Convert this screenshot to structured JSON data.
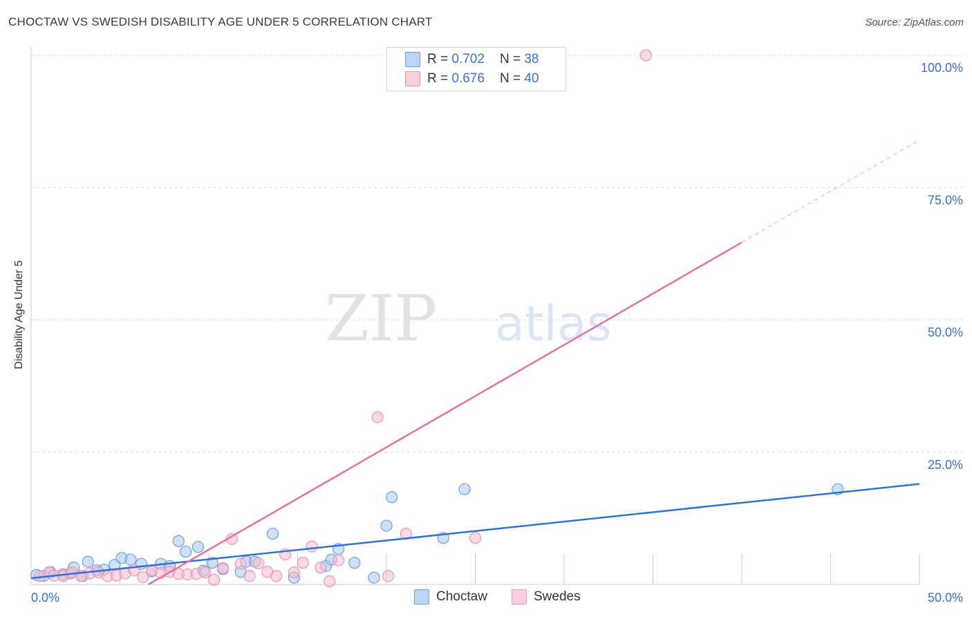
{
  "title": "CHOCTAW VS SWEDISH DISABILITY AGE UNDER 5 CORRELATION CHART",
  "source": "Source: ZipAtlas.com",
  "watermark": {
    "zip": "ZIP",
    "atlas": "atlas"
  },
  "legend": {
    "rows": [
      {
        "r_label": "R =",
        "r_value": "0.702",
        "n_label": "N =",
        "n_value": "38"
      },
      {
        "r_label": "R =",
        "r_value": "0.676",
        "n_label": "N =",
        "n_value": "40"
      }
    ]
  },
  "colors": {
    "choctaw_fill": "#a8c8f0",
    "choctaw_stroke": "#6f9fe0",
    "choctaw_line": "#2f72d0",
    "swedes_fill": "#f8bcd0",
    "swedes_stroke": "#ee94b2",
    "swedes_line": "#e8709a",
    "tick_label": "#3b6fd0"
  },
  "chart_data": {
    "type": "scatter",
    "title": "CHOCTAW VS SWEDISH DISABILITY AGE UNDER 5 CORRELATION CHART",
    "xlabel": "",
    "ylabel": "Disability Age Under 5",
    "xlim": [
      0,
      50
    ],
    "ylim": [
      0,
      100
    ],
    "x_tick_labels": [
      "0.0%",
      "50.0%"
    ],
    "y_tick_labels": [
      "25.0%",
      "50.0%",
      "75.0%",
      "100.0%"
    ],
    "y_ticks": [
      25,
      50,
      75,
      100
    ],
    "x_minor_ticks": [
      5,
      10,
      15,
      20,
      25,
      30,
      35,
      40,
      45,
      50
    ],
    "grid": true,
    "series": [
      {
        "name": "Choctaw",
        "r": 0.702,
        "n": 38,
        "trend": {
          "x0": 0,
          "y0": 1.2,
          "x1": 50,
          "y1": 19.0
        },
        "points": [
          [
            0.3,
            1.8
          ],
          [
            0.7,
            1.6
          ],
          [
            1.1,
            2.3
          ],
          [
            1.8,
            1.9
          ],
          [
            2.2,
            2.1
          ],
          [
            2.4,
            3.2
          ],
          [
            2.9,
            1.6
          ],
          [
            3.2,
            4.3
          ],
          [
            3.7,
            2.7
          ],
          [
            4.1,
            2.8
          ],
          [
            4.7,
            3.7
          ],
          [
            5.1,
            5.0
          ],
          [
            5.6,
            4.7
          ],
          [
            6.2,
            3.9
          ],
          [
            6.8,
            2.5
          ],
          [
            7.3,
            3.9
          ],
          [
            7.8,
            3.5
          ],
          [
            8.3,
            8.2
          ],
          [
            8.7,
            6.2
          ],
          [
            9.4,
            7.1
          ],
          [
            9.7,
            2.6
          ],
          [
            10.2,
            4.1
          ],
          [
            10.8,
            2.9
          ],
          [
            11.8,
            2.4
          ],
          [
            12.1,
            4.3
          ],
          [
            12.6,
            4.3
          ],
          [
            13.6,
            9.6
          ],
          [
            14.8,
            1.3
          ],
          [
            16.6,
            3.5
          ],
          [
            16.9,
            4.7
          ],
          [
            17.3,
            6.7
          ],
          [
            18.2,
            4.1
          ],
          [
            19.3,
            1.3
          ],
          [
            20.0,
            11.1
          ],
          [
            20.3,
            16.5
          ],
          [
            23.2,
            8.8
          ],
          [
            24.4,
            18.0
          ],
          [
            45.4,
            18.0
          ]
        ]
      },
      {
        "name": "Swedes",
        "r": 0.676,
        "n": 40,
        "trend": {
          "x0": 6.6,
          "y0": 0,
          "x1": 50,
          "y1": 84.0
        },
        "trend_solid_until_x": 40,
        "points": [
          [
            0.5,
            1.6
          ],
          [
            1.0,
            2.3
          ],
          [
            1.3,
            1.7
          ],
          [
            1.8,
            1.6
          ],
          [
            2.3,
            2.3
          ],
          [
            2.8,
            1.6
          ],
          [
            3.3,
            2.1
          ],
          [
            3.8,
            2.3
          ],
          [
            4.3,
            1.6
          ],
          [
            4.8,
            1.7
          ],
          [
            5.3,
            2.1
          ],
          [
            5.8,
            2.7
          ],
          [
            6.3,
            1.4
          ],
          [
            6.8,
            2.7
          ],
          [
            7.3,
            2.2
          ],
          [
            7.8,
            2.4
          ],
          [
            8.3,
            2.0
          ],
          [
            8.8,
            1.9
          ],
          [
            9.3,
            2.0
          ],
          [
            9.8,
            2.3
          ],
          [
            10.3,
            0.9
          ],
          [
            10.8,
            3.1
          ],
          [
            11.3,
            8.6
          ],
          [
            11.8,
            3.9
          ],
          [
            12.3,
            1.6
          ],
          [
            12.8,
            4.0
          ],
          [
            13.3,
            2.4
          ],
          [
            13.8,
            1.6
          ],
          [
            14.3,
            5.7
          ],
          [
            14.8,
            2.3
          ],
          [
            15.3,
            4.1
          ],
          [
            15.8,
            7.2
          ],
          [
            16.3,
            3.2
          ],
          [
            16.8,
            0.6
          ],
          [
            17.3,
            4.6
          ],
          [
            19.5,
            31.6
          ],
          [
            20.1,
            1.6
          ],
          [
            21.1,
            9.6
          ],
          [
            25.0,
            8.8
          ],
          [
            34.6,
            100.0
          ]
        ]
      }
    ]
  },
  "bottom_legend": [
    "Choctaw",
    "Swedes"
  ]
}
